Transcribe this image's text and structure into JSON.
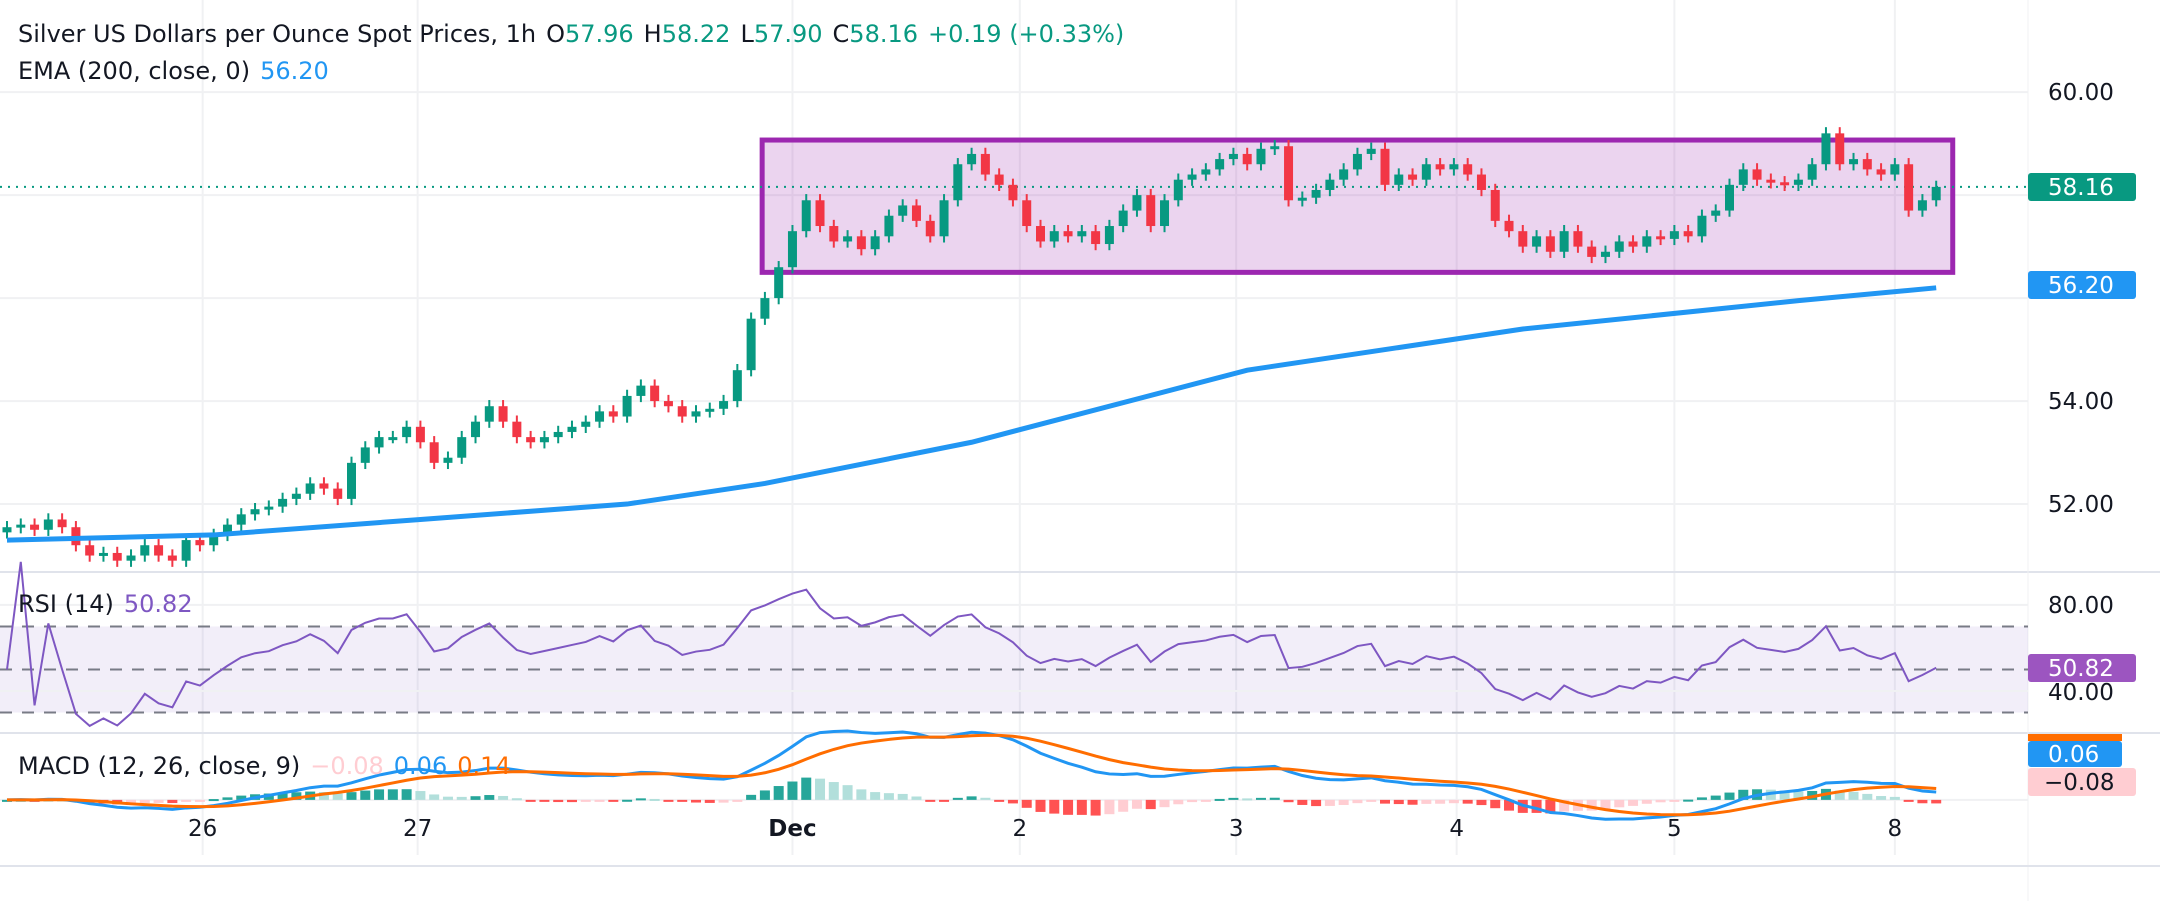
{
  "header": {
    "title": "Silver US Dollars per Ounce Spot Prices, 1h",
    "o_label": "O",
    "o_value": "57.96",
    "h_label": "H",
    "h_value": "58.22",
    "l_label": "L",
    "l_value": "57.90",
    "c_label": "C",
    "c_value": "58.16",
    "change": "+0.19 (+0.33%)"
  },
  "ema_legend": {
    "label": "EMA (200, close, 0)",
    "value": "56.20"
  },
  "rsi_legend": {
    "label": "RSI (14)",
    "value": "50.82"
  },
  "macd_legend": {
    "label": "MACD (12, 26, close, 9)",
    "hist": "−0.08",
    "macd": "0.06",
    "signal": "0.14"
  },
  "axis": {
    "price_ticks": [
      "60.00",
      "54.00",
      "52.00"
    ],
    "last_price": "58.16",
    "ema_price": "56.20",
    "rsi_ticks": [
      "80.00",
      "40.00"
    ],
    "rsi_value": "50.82",
    "macd_value": "0.06",
    "hist_value": "−0.08",
    "x_labels": [
      "26",
      "27",
      "Dec",
      "2",
      "3",
      "4",
      "5",
      "8"
    ]
  },
  "colors": {
    "up": "#089981",
    "down": "#f23645",
    "ema": "#2196f3",
    "range_box": "#9c27b0",
    "rsi": "#7e57c2",
    "macd": "#2196f3",
    "signal": "#ff6d00"
  },
  "chart_data": [
    {
      "type": "candlestick",
      "title": "Silver US Dollars per Ounce Spot Prices, 1h",
      "price_range": [
        50.68,
        61.79
      ],
      "grid": true,
      "x_ticks": [
        {
          "label": "26",
          "candle_index": 14.2
        },
        {
          "label": "27",
          "candle_index": 29.8
        },
        {
          "label": "Dec",
          "candle_index": 57
        },
        {
          "label": "2",
          "candle_index": 73.5
        },
        {
          "label": "3",
          "candle_index": 89.2
        },
        {
          "label": "4",
          "candle_index": 105.2
        },
        {
          "label": "5",
          "candle_index": 121
        },
        {
          "label": "8",
          "candle_index": 137
        }
      ],
      "y_ticks": [
        60,
        58,
        56,
        54,
        52
      ],
      "close": [
        51.55,
        51.6,
        51.5,
        51.7,
        51.55,
        51.2,
        51.0,
        51.05,
        50.9,
        51.0,
        51.2,
        51.0,
        50.9,
        51.3,
        51.2,
        51.4,
        51.6,
        51.8,
        51.9,
        51.95,
        52.1,
        52.2,
        52.4,
        52.3,
        52.1,
        52.8,
        53.1,
        53.3,
        53.3,
        53.5,
        53.2,
        52.8,
        52.9,
        53.3,
        53.6,
        53.9,
        53.6,
        53.3,
        53.2,
        53.3,
        53.4,
        53.5,
        53.6,
        53.8,
        53.7,
        54.1,
        54.3,
        54.0,
        53.9,
        53.7,
        53.8,
        53.85,
        54.0,
        54.6,
        55.6,
        56.0,
        56.6,
        57.3,
        57.9,
        57.4,
        57.1,
        57.2,
        56.95,
        57.2,
        57.6,
        57.8,
        57.5,
        57.2,
        57.9,
        58.6,
        58.8,
        58.4,
        58.2,
        57.9,
        57.4,
        57.1,
        57.3,
        57.2,
        57.3,
        57.05,
        57.4,
        57.7,
        58.0,
        57.4,
        57.9,
        58.3,
        58.4,
        58.5,
        58.7,
        58.8,
        58.6,
        58.9,
        58.95,
        57.9,
        57.95,
        58.1,
        58.3,
        58.5,
        58.8,
        58.9,
        58.2,
        58.4,
        58.3,
        58.6,
        58.5,
        58.6,
        58.4,
        58.1,
        57.5,
        57.3,
        57.0,
        57.2,
        56.9,
        57.3,
        57.0,
        56.8,
        56.9,
        57.1,
        57.0,
        57.2,
        57.15,
        57.3,
        57.2,
        57.6,
        57.7,
        58.2,
        58.5,
        58.3,
        58.25,
        58.2,
        58.3,
        58.6,
        59.2,
        58.6,
        58.7,
        58.5,
        58.4,
        58.6,
        57.7,
        57.9,
        58.16
      ],
      "ema200": [
        [
          0,
          51.3
        ],
        [
          15,
          51.4
        ],
        [
          30,
          51.7
        ],
        [
          45,
          52.0
        ],
        [
          55,
          52.4
        ],
        [
          70,
          53.2
        ],
        [
          90,
          54.6
        ],
        [
          110,
          55.4
        ],
        [
          130,
          55.95
        ],
        [
          140,
          56.2
        ]
      ],
      "range_box": {
        "from_index": 54.8,
        "to_index": 141.2,
        "low": 56.5,
        "high": 59.07
      }
    },
    {
      "type": "line",
      "name": "RSI (14)",
      "range": [
        20.5,
        95.3
      ],
      "y_ticks": [
        80,
        40
      ],
      "bands": [
        70,
        50,
        30
      ],
      "last": 50.82
    },
    {
      "type": "bar+line",
      "name": "MACD (12, 26, close, 9)",
      "range": [
        -0.89,
        1.08
      ],
      "last": {
        "histogram": -0.08,
        "macd": 0.06,
        "signal": 0.14
      }
    }
  ]
}
